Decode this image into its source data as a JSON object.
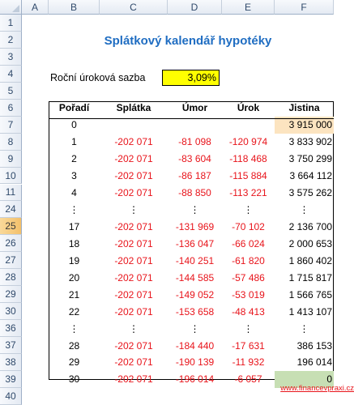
{
  "columns": [
    "A",
    "B",
    "C",
    "D",
    "E",
    "F"
  ],
  "rows": [
    "1",
    "2",
    "3",
    "4",
    "5",
    "6",
    "7",
    "8",
    "9",
    "10",
    "11",
    "24",
    "25",
    "26",
    "27",
    "28",
    "29",
    "30",
    "36",
    "37",
    "38",
    "39",
    "40"
  ],
  "selected_row": "25",
  "title": "Splátkový kalendář hypotéky",
  "rate": {
    "label": "Roční úroková sazba",
    "value": "3,09%"
  },
  "table": {
    "headers": [
      "Pořadí",
      "Splátka",
      "Úmor",
      "Úrok",
      "Jistina"
    ],
    "rows": [
      {
        "poradi": "0",
        "splatka": "",
        "umor": "",
        "urok": "",
        "jistina": "3 915 000"
      },
      {
        "poradi": "1",
        "splatka": "-202 071",
        "umor": "-81 098",
        "urok": "-120 974",
        "jistina": "3 833 902"
      },
      {
        "poradi": "2",
        "splatka": "-202 071",
        "umor": "-83 604",
        "urok": "-118 468",
        "jistina": "3 750 299"
      },
      {
        "poradi": "3",
        "splatka": "-202 071",
        "umor": "-86 187",
        "urok": "-115 884",
        "jistina": "3 664 112"
      },
      {
        "poradi": "4",
        "splatka": "-202 071",
        "umor": "-88 850",
        "urok": "-113 221",
        "jistina": "3 575 262"
      },
      {
        "poradi": "⋮",
        "splatka": "⋮",
        "umor": "⋮",
        "urok": "⋮",
        "jistina": "⋮"
      },
      {
        "poradi": "17",
        "splatka": "-202 071",
        "umor": "-131 969",
        "urok": "-70 102",
        "jistina": "2 136 700"
      },
      {
        "poradi": "18",
        "splatka": "-202 071",
        "umor": "-136 047",
        "urok": "-66 024",
        "jistina": "2 000 653"
      },
      {
        "poradi": "19",
        "splatka": "-202 071",
        "umor": "-140 251",
        "urok": "-61 820",
        "jistina": "1 860 402"
      },
      {
        "poradi": "20",
        "splatka": "-202 071",
        "umor": "-144 585",
        "urok": "-57 486",
        "jistina": "1 715 817"
      },
      {
        "poradi": "21",
        "splatka": "-202 071",
        "umor": "-149 052",
        "urok": "-53 019",
        "jistina": "1 566 765"
      },
      {
        "poradi": "22",
        "splatka": "-202 071",
        "umor": "-153 658",
        "urok": "-48 413",
        "jistina": "1 413 107"
      },
      {
        "poradi": "⋮",
        "splatka": "⋮",
        "umor": "⋮",
        "urok": "⋮",
        "jistina": "⋮"
      },
      {
        "poradi": "28",
        "splatka": "-202 071",
        "umor": "-184 440",
        "urok": "-17 631",
        "jistina": "386 153"
      },
      {
        "poradi": "29",
        "splatka": "-202 071",
        "umor": "-190 139",
        "urok": "-11 932",
        "jistina": "196 014"
      },
      {
        "poradi": "30",
        "splatka": "-202 071",
        "umor": "-196 014",
        "urok": "-6 057",
        "jistina": "0"
      }
    ]
  },
  "link": "www.financevpraxi.cz",
  "colors": {
    "title": "#1f6dc2",
    "negative": "#e8141b",
    "rate_fill": "#ffff00",
    "start_fill": "#fce4c0",
    "end_fill": "#c7dfb4",
    "selected_row": "#f3c06a"
  }
}
